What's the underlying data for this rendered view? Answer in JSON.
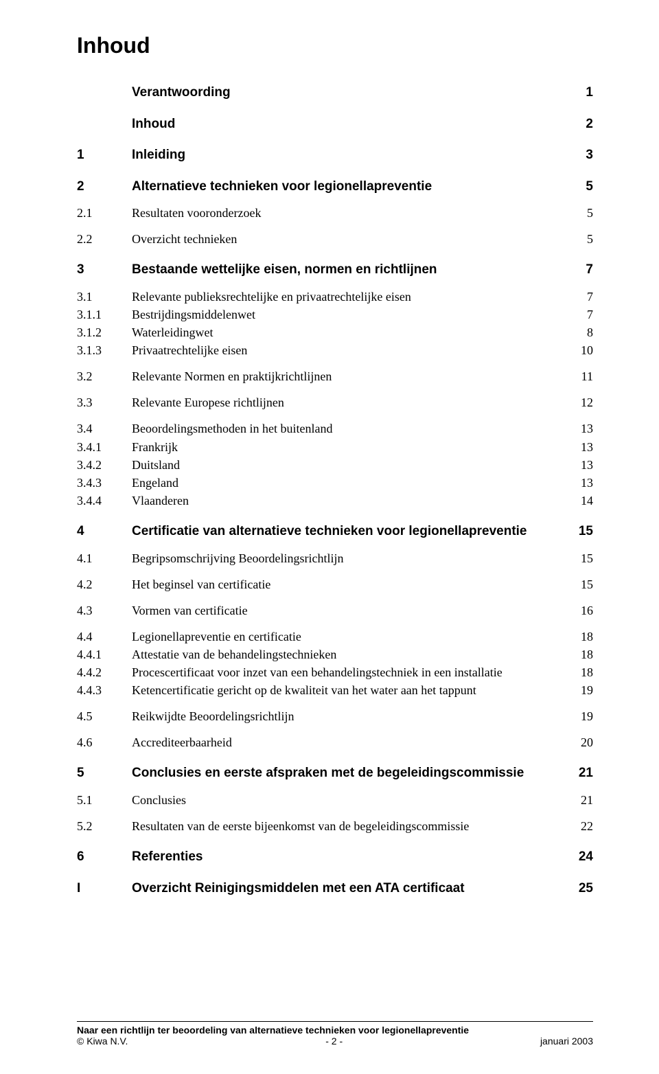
{
  "title": "Inhoud",
  "entries": [
    {
      "num": "",
      "title": "Verantwoording",
      "page": "1",
      "bold": true,
      "gap": true
    },
    {
      "num": "",
      "title": "Inhoud",
      "page": "2",
      "bold": true,
      "gap": true
    },
    {
      "num": "1",
      "title": "Inleiding",
      "page": "3",
      "bold": true,
      "gap": true
    },
    {
      "num": "2",
      "title": "Alternatieve technieken voor legionellapreventie",
      "page": "5",
      "bold": true,
      "gap": true
    },
    {
      "num": "2.1",
      "title": "Resultaten vooronderzoek",
      "page": "5",
      "bold": false,
      "gap": true
    },
    {
      "num": "2.2",
      "title": "Overzicht technieken",
      "page": "5",
      "bold": false,
      "gap": true
    },
    {
      "num": "3",
      "title": "Bestaande wettelijke eisen, normen en richtlijnen",
      "page": "7",
      "bold": true,
      "gap": true
    },
    {
      "num": "3.1",
      "title": "Relevante publieksrechtelijke en privaatrechtelijke eisen",
      "page": "7",
      "bold": false,
      "gap": true
    },
    {
      "num": "3.1.1",
      "title": "Bestrijdingsmiddelenwet",
      "page": "7",
      "bold": false,
      "gap": false
    },
    {
      "num": "3.1.2",
      "title": "Waterleidingwet",
      "page": "8",
      "bold": false,
      "gap": false
    },
    {
      "num": "3.1.3",
      "title": "Privaatrechtelijke eisen",
      "page": "10",
      "bold": false,
      "gap": false
    },
    {
      "num": "3.2",
      "title": "Relevante Normen en praktijkrichtlijnen",
      "page": "11",
      "bold": false,
      "gap": true
    },
    {
      "num": "3.3",
      "title": "Relevante Europese richtlijnen",
      "page": "12",
      "bold": false,
      "gap": true
    },
    {
      "num": "3.4",
      "title": "Beoordelingsmethoden in het buitenland",
      "page": "13",
      "bold": false,
      "gap": true
    },
    {
      "num": "3.4.1",
      "title": "Frankrijk",
      "page": "13",
      "bold": false,
      "gap": false
    },
    {
      "num": "3.4.2",
      "title": "Duitsland",
      "page": "13",
      "bold": false,
      "gap": false
    },
    {
      "num": "3.4.3",
      "title": "Engeland",
      "page": "13",
      "bold": false,
      "gap": false
    },
    {
      "num": "3.4.4",
      "title": "Vlaanderen",
      "page": "14",
      "bold": false,
      "gap": false
    },
    {
      "num": "4",
      "title": "Certificatie van alternatieve technieken voor legionellapreventie",
      "page": "15",
      "bold": true,
      "gap": true
    },
    {
      "num": "4.1",
      "title": "Begripsomschrijving Beoordelingsrichtlijn",
      "page": "15",
      "bold": false,
      "gap": true
    },
    {
      "num": "4.2",
      "title": "Het beginsel van certificatie",
      "page": "15",
      "bold": false,
      "gap": true
    },
    {
      "num": "4.3",
      "title": "Vormen van certificatie",
      "page": "16",
      "bold": false,
      "gap": true
    },
    {
      "num": "4.4",
      "title": "Legionellapreventie en certificatie",
      "page": "18",
      "bold": false,
      "gap": true
    },
    {
      "num": "4.4.1",
      "title": "Attestatie van de behandelingstechnieken",
      "page": "18",
      "bold": false,
      "gap": false
    },
    {
      "num": "4.4.2",
      "title": "Procescertificaat voor inzet van een behandelingstechniek in een installatie",
      "page": "18",
      "bold": false,
      "gap": false
    },
    {
      "num": "4.4.3",
      "title": "Ketencertificatie gericht op de kwaliteit van het water aan het tappunt",
      "page": "19",
      "bold": false,
      "gap": false
    },
    {
      "num": "4.5",
      "title": "Reikwijdte Beoordelingsrichtlijn",
      "page": "19",
      "bold": false,
      "gap": true
    },
    {
      "num": "4.6",
      "title": "Accrediteerbaarheid",
      "page": "20",
      "bold": false,
      "gap": true
    },
    {
      "num": "5",
      "title": "Conclusies en eerste afspraken met de begeleidingscommissie",
      "page": "21",
      "bold": true,
      "gap": true
    },
    {
      "num": "5.1",
      "title": "Conclusies",
      "page": "21",
      "bold": false,
      "gap": true
    },
    {
      "num": "5.2",
      "title": "Resultaten van de eerste bijeenkomst van de begeleidingscommissie",
      "page": "22",
      "bold": false,
      "gap": true
    },
    {
      "num": "6",
      "title": "Referenties",
      "page": "24",
      "bold": true,
      "gap": true
    },
    {
      "num": "I",
      "title": "Overzicht Reinigingsmiddelen met een ATA certificaat",
      "page": "25",
      "bold": true,
      "gap": true
    }
  ],
  "footer": {
    "line1": "Naar een richtlijn ter beoordeling van alternatieve technieken voor legionellapreventie",
    "copyright": "© Kiwa N.V.",
    "page_indicator": "- 2 -",
    "date": "januari 2003"
  }
}
